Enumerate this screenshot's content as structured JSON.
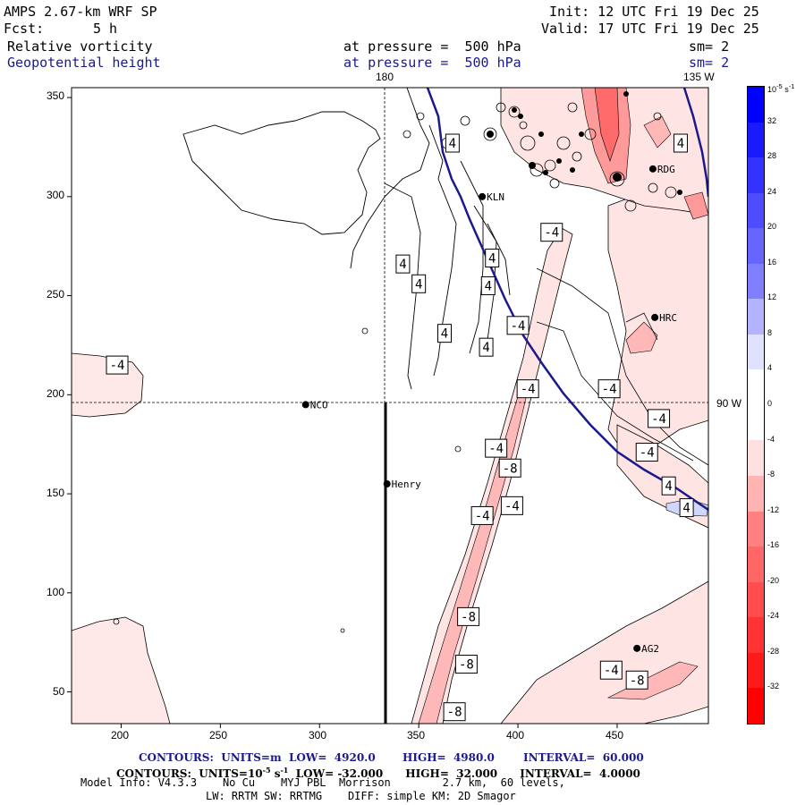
{
  "header": {
    "model": "AMPS 2.67-km WRF SP",
    "init": "Init: 12 UTC Fri 19 Dec 25",
    "fcst_label": "Fcst:",
    "fcst_value": "5 h",
    "valid": "Valid: 17 UTC Fri 19 Dec 25",
    "field1": "Relative vorticity",
    "field1_level": "at pressure =  500 hPa",
    "field1_sm": "sm= 2",
    "field2": "Geopotential height",
    "field2_level": "at pressure =  500 hPa",
    "field2_sm": "sm= 2"
  },
  "map": {
    "lon_labels": [
      "180",
      "135 W",
      "90 W"
    ],
    "stations": [
      {
        "name": "KLN",
        "x": 382,
        "y": 300
      },
      {
        "name": "RDG",
        "x": 468,
        "y": 314
      },
      {
        "name": "HRC",
        "x": 469,
        "y": 239
      },
      {
        "name": "NCO",
        "x": 293,
        "y": 195
      },
      {
        "name": "Henry",
        "x": 334,
        "y": 155
      },
      {
        "name": "AG2",
        "x": 460,
        "y": 72
      }
    ],
    "contour_labels": [
      {
        "text": "-4",
        "x": 198,
        "y": 215
      },
      {
        "text": "4",
        "x": 367,
        "y": 327
      },
      {
        "text": "4",
        "x": 342,
        "y": 266
      },
      {
        "text": "4",
        "x": 350,
        "y": 256
      },
      {
        "text": "4",
        "x": 387,
        "y": 269
      },
      {
        "text": "4",
        "x": 385,
        "y": 255
      },
      {
        "text": "4",
        "x": 363,
        "y": 231
      },
      {
        "text": "4",
        "x": 384,
        "y": 224
      },
      {
        "text": "4",
        "x": 482,
        "y": 327
      },
      {
        "text": "-4",
        "x": 417,
        "y": 282
      },
      {
        "text": "-4",
        "x": 400,
        "y": 235
      },
      {
        "text": "-4",
        "x": 405,
        "y": 203
      },
      {
        "text": "-4",
        "x": 446,
        "y": 203
      },
      {
        "text": "-4",
        "x": 471,
        "y": 188
      },
      {
        "text": "-4",
        "x": 389,
        "y": 173
      },
      {
        "text": "-4",
        "x": 465,
        "y": 171
      },
      {
        "text": "-8",
        "x": 396,
        "y": 163
      },
      {
        "text": "-4",
        "x": 397,
        "y": 144
      },
      {
        "text": "-4",
        "x": 382,
        "y": 139
      },
      {
        "text": "4",
        "x": 476,
        "y": 154
      },
      {
        "text": "4",
        "x": 485,
        "y": 143
      },
      {
        "text": "-8",
        "x": 375,
        "y": 88
      },
      {
        "text": "-8",
        "x": 374,
        "y": 64
      },
      {
        "text": "-8",
        "x": 368,
        "y": 40
      },
      {
        "text": "-4",
        "x": 447,
        "y": 61
      },
      {
        "text": "-8",
        "x": 460,
        "y": 56
      }
    ]
  },
  "axes": {
    "x_ticks": [
      "200",
      "250",
      "300",
      "350",
      "400",
      "450"
    ],
    "y_ticks": [
      "350",
      "300",
      "250",
      "200",
      "150",
      "100",
      "50"
    ]
  },
  "colorbar": {
    "unit": "10",
    "unit_exp": "-5",
    "unit_suffix": " s",
    "unit_exp2": "-1",
    "ticks": [
      "32",
      "28",
      "24",
      "20",
      "16",
      "12",
      "8",
      "4",
      "0",
      "-4",
      "-8",
      "-12",
      "-16",
      "-20",
      "-24",
      "-28",
      "-32"
    ],
    "colors": [
      "#0000ff",
      "#1a1aff",
      "#3333ff",
      "#4d4dff",
      "#6666ff",
      "#8080ff",
      "#b3b3ff",
      "#e0e0ff",
      "#ffffff",
      "#ffffff",
      "#ffe0e0",
      "#ffb3b3",
      "#ff8080",
      "#ff6666",
      "#ff4d4d",
      "#ff3333",
      "#ff1a1a",
      "#ff0000"
    ]
  },
  "footer": {
    "line1_a": "CONTOURS:  UNITS=m  LOW=  4920.0",
    "line1_b": "HIGH=  4980.0",
    "line1_c": "INTERVAL=  60.000",
    "line2": "CONTOURS:  UNITS=10",
    "line2_exp": "-5",
    "line2_s": " s",
    "line2_exp2": "-1",
    "line2_rest": "  LOW= -32.000      HIGH=  32.000      INTERVAL=  4.0000",
    "line3": "Model Info: V4.3.3    No Cu    MYJ PBL  Morrison        2.7 km,  60 levels,",
    "line4": "LW: RRTM SW: RRTMG    DIFF: simple KM: 2D Smagor"
  }
}
